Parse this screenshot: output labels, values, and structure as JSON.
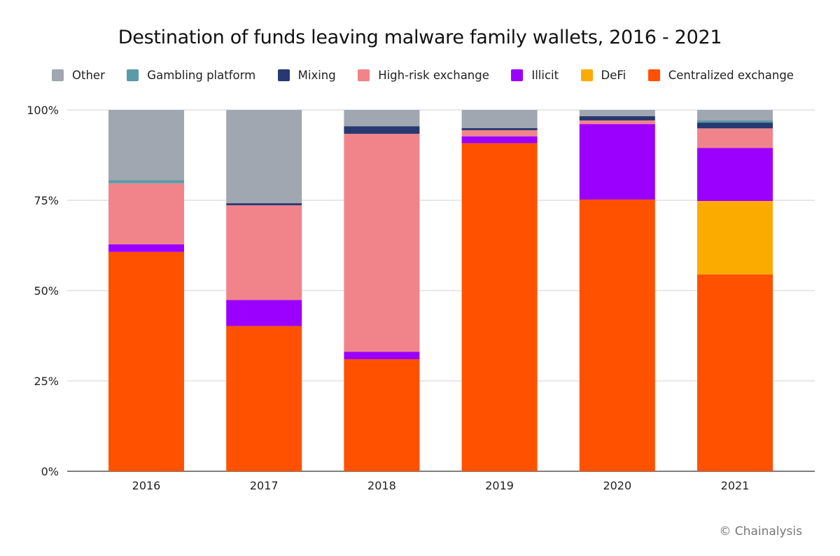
{
  "chart_data": {
    "type": "bar",
    "stacked": true,
    "title": "Destination of funds leaving malware family wallets, 2016 - 2021",
    "xlabel": "",
    "ylabel": "",
    "ylim": [
      0,
      100
    ],
    "yticks": [
      "0%",
      "25%",
      "50%",
      "75%",
      "100%"
    ],
    "grid": true,
    "legend_position": "top",
    "categories": [
      "2016",
      "2017",
      "2018",
      "2019",
      "2020",
      "2021"
    ],
    "series": [
      {
        "name": "Centralized exchange",
        "color": "#ff5100",
        "values": [
          60.7,
          40.2,
          31.0,
          90.8,
          75.2,
          54.5
        ]
      },
      {
        "name": "DeFi",
        "color": "#fbab00",
        "values": [
          0,
          0,
          0,
          0,
          0,
          20.3
        ]
      },
      {
        "name": "Illicit",
        "color": "#9b00ff",
        "values": [
          2.1,
          7.2,
          2.1,
          1.9,
          20.9,
          14.7
        ]
      },
      {
        "name": "High-risk exchange",
        "color": "#f0848a",
        "values": [
          16.9,
          26.2,
          60.3,
          1.7,
          1.0,
          5.4
        ]
      },
      {
        "name": "Mixing",
        "color": "#283870",
        "values": [
          0,
          0.6,
          2.1,
          0.6,
          1.2,
          1.6
        ]
      },
      {
        "name": "Gambling platform",
        "color": "#5b9aa8",
        "values": [
          0.9,
          0,
          0,
          0,
          0,
          0.6
        ]
      },
      {
        "name": "Other",
        "color": "#a0a7b0",
        "values": [
          19.4,
          25.8,
          4.5,
          5.0,
          1.7,
          2.9
        ]
      }
    ],
    "legend_order": [
      "Other",
      "Gambling platform",
      "Mixing",
      "High-risk exchange",
      "Illicit",
      "DeFi",
      "Centralized exchange"
    ]
  },
  "credit": "© Chainalysis"
}
